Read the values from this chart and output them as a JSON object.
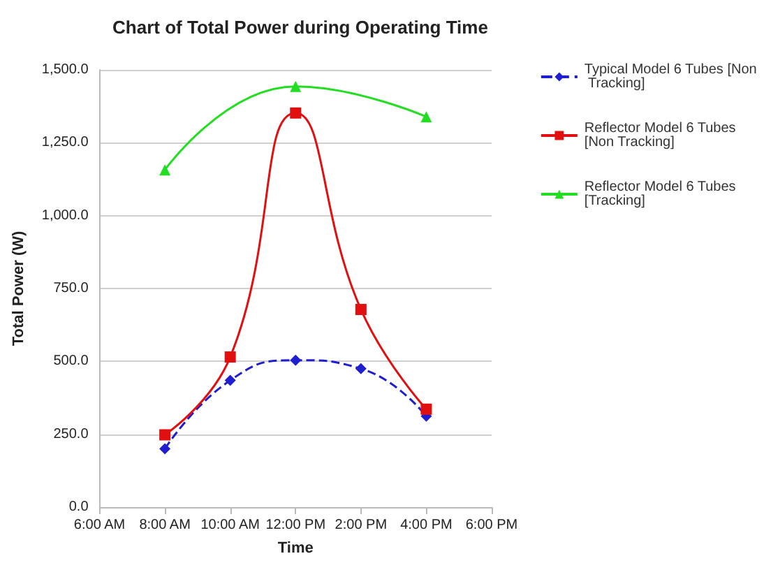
{
  "chart_data": {
    "type": "line",
    "title": "Chart of Total Power during Operating Time",
    "xlabel": "Time",
    "ylabel": "Total Power (W)",
    "xlim": [
      6,
      18
    ],
    "xticks": [
      {
        "value": 6,
        "label": "6:00 AM"
      },
      {
        "value": 8,
        "label": "8:00 AM"
      },
      {
        "value": 10,
        "label": "10:00 AM"
      },
      {
        "value": 12,
        "label": "12:00 PM"
      },
      {
        "value": 14,
        "label": "2:00 PM"
      },
      {
        "value": 16,
        "label": "4:00 PM"
      },
      {
        "value": 18,
        "label": "6:00 PM"
      }
    ],
    "ylim": [
      0,
      1500
    ],
    "yticks": [
      {
        "value": 0,
        "label": "0.0"
      },
      {
        "value": 250,
        "label": "250.0"
      },
      {
        "value": 500,
        "label": "500.0"
      },
      {
        "value": 750,
        "label": "750.0"
      },
      {
        "value": 1000,
        "label": "1,000.0"
      },
      {
        "value": 1250,
        "label": "1,250.0"
      },
      {
        "value": 1500,
        "label": "1,500.0"
      }
    ],
    "grid": "y",
    "legend": "right",
    "series": [
      {
        "name": "Typical Model 6 Tubes [Non Tracking]",
        "color": "#1f1fd0",
        "marker": "diamond",
        "line_style": "dashed",
        "x": [
          8,
          10,
          12,
          14,
          16
        ],
        "values": [
          200,
          435,
          504,
          475,
          312
        ]
      },
      {
        "name": "Reflector Model 6 Tubes [Non Tracking]",
        "color": "#e01010",
        "marker": "square",
        "line_style": "solid",
        "x": [
          8,
          10,
          12,
          14,
          16
        ],
        "values": [
          248,
          515,
          1352,
          678,
          336
        ]
      },
      {
        "name": "Reflector Model 6 Tubes [Tracking]",
        "color": "#22dd22",
        "marker": "triangle",
        "line_style": "solid",
        "x": [
          8,
          12,
          16
        ],
        "values": [
          1157,
          1443,
          1339
        ]
      }
    ]
  }
}
